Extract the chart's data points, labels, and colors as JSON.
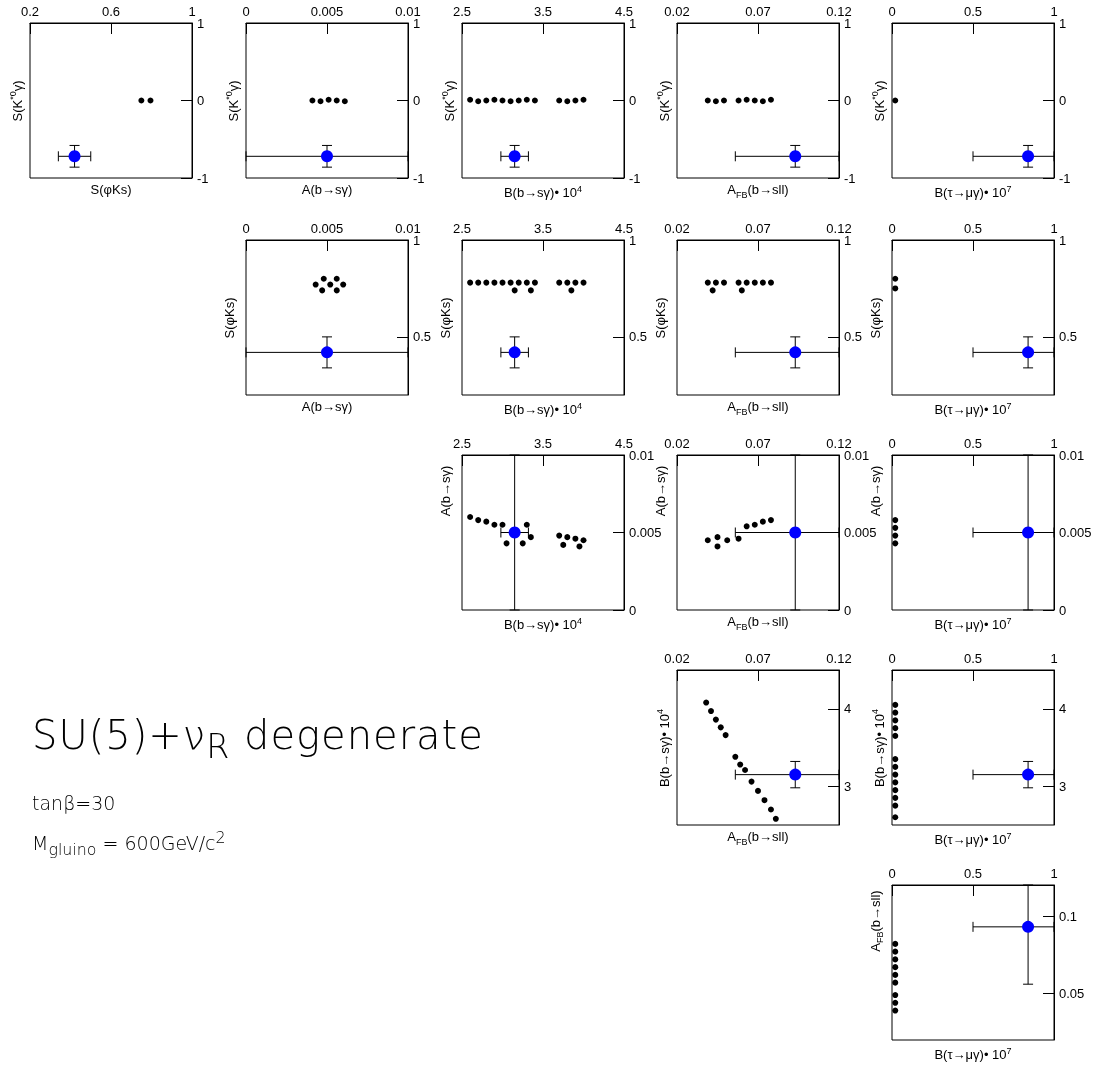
{
  "chart_data": [
    {
      "type": "scatter",
      "xlabel": "S(φKs)",
      "ylabel": "S(K$^{*0}$γ)",
      "xlim": [
        0.2,
        1
      ],
      "ylim": [
        -1,
        1
      ],
      "xticks": [
        0.2,
        0.6,
        1
      ],
      "yticks": [
        -1,
        0,
        1
      ],
      "marker": "circle",
      "series": [
        {
          "color": "#000000",
          "x": [
            0.75,
            0.795
          ],
          "values": [
            0,
            0
          ]
        },
        {
          "color": "#0000ff",
          "x": [
            0.42
          ],
          "values": [
            -0.72
          ],
          "xerrors": [
            0.08
          ],
          "errors": [
            0.14
          ]
        }
      ]
    },
    {
      "type": "scatter",
      "xlabel": "A(b→sγ)",
      "ylabel": "S(K$^{*0}$γ)",
      "xlim": [
        0,
        0.01
      ],
      "ylim": [
        -1,
        1
      ],
      "xticks": [
        0,
        0.005,
        0.01
      ],
      "yticks": [
        -1,
        0,
        1
      ],
      "marker": "circle",
      "series": [
        {
          "color": "#000000",
          "x": [
            0.0041,
            0.0046,
            0.0051,
            0.0056,
            0.0061
          ],
          "values": [
            0,
            -0.01,
            0.01,
            0,
            -0.01
          ]
        },
        {
          "color": "#0000ff",
          "x": [
            0.005
          ],
          "values": [
            -0.72
          ],
          "xerrors": [
            0.005
          ],
          "errors": [
            0.14
          ]
        }
      ]
    },
    {
      "type": "scatter",
      "xlabel": "B(b→sγ)• 10$^{4}$",
      "ylabel": "S(K$^{*0}$γ)",
      "xlim": [
        2.5,
        4.5
      ],
      "ylim": [
        -1,
        1
      ],
      "xticks": [
        2.5,
        3.5,
        4.5
      ],
      "yticks": [
        -1,
        0,
        1
      ],
      "marker": "circle",
      "series": [
        {
          "color": "#000000",
          "x": [
            2.6,
            2.7,
            2.8,
            2.9,
            3,
            3.1,
            3.2,
            3.3,
            3.4,
            3.7,
            3.8,
            3.9,
            4
          ],
          "values": [
            0.01,
            -0.01,
            0,
            0.01,
            0,
            -0.01,
            0,
            0.01,
            0,
            0,
            -0.01,
            0,
            0.01
          ]
        },
        {
          "color": "#0000ff",
          "x": [
            3.15
          ],
          "values": [
            -0.72
          ],
          "xerrors": [
            0.17
          ],
          "errors": [
            0.14
          ]
        }
      ]
    },
    {
      "type": "scatter",
      "xlabel": "A$_{FB}$(b→sll)",
      "ylabel": "S(K$^{*0}$γ)",
      "xlim": [
        0.02,
        0.12
      ],
      "ylim": [
        -1,
        1
      ],
      "xticks": [
        0.02,
        0.07,
        0.12
      ],
      "yticks": [
        -1,
        0,
        1
      ],
      "marker": "circle",
      "series": [
        {
          "color": "#000000",
          "x": [
            0.039,
            0.044,
            0.049,
            0.058,
            0.063,
            0.068,
            0.073,
            0.078
          ],
          "values": [
            0,
            -0.01,
            0,
            0,
            0.01,
            0,
            -0.01,
            0.01
          ]
        },
        {
          "color": "#0000ff",
          "x": [
            0.093
          ],
          "values": [
            -0.72
          ],
          "xerrors": [
            [
              0.056,
              0.12
            ]
          ],
          "errors": [
            0.14
          ]
        }
      ]
    },
    {
      "type": "scatter",
      "xlabel": "B(τ→μγ)• 10$^{7}$",
      "ylabel": "S(K$^{*0}$γ)",
      "xlim": [
        0,
        1
      ],
      "ylim": [
        -1,
        1
      ],
      "xticks": [
        0,
        0.5,
        1
      ],
      "yticks": [
        -1,
        0,
        1
      ],
      "marker": "circle",
      "series": [
        {
          "color": "#000000",
          "x": [
            0.02
          ],
          "values": [
            0
          ]
        },
        {
          "color": "#0000ff",
          "x": [
            0.84
          ],
          "values": [
            -0.72
          ],
          "xerrors": [
            [
              0.5,
              1
            ]
          ],
          "errors": [
            0.14
          ]
        }
      ]
    },
    {
      "type": "scatter",
      "xlabel": "A(b→sγ)",
      "ylabel": "S(φKs)",
      "xlim": [
        0,
        0.01
      ],
      "ylim": [
        0.2,
        1
      ],
      "xticks": [
        0,
        0.005,
        0.01
      ],
      "yticks": [
        0.5,
        1
      ],
      "marker": "circle",
      "series": [
        {
          "color": "#000000",
          "x": [
            0.0043,
            0.0048,
            0.0047,
            0.0052,
            0.0056,
            0.0056,
            0.006
          ],
          "values": [
            0.77,
            0.8,
            0.74,
            0.77,
            0.8,
            0.74,
            0.77
          ]
        },
        {
          "color": "#0000ff",
          "x": [
            0.005
          ],
          "values": [
            0.42
          ],
          "xerrors": [
            0.005
          ],
          "errors": [
            0.08
          ]
        }
      ]
    },
    {
      "type": "scatter",
      "xlabel": "B(b→sγ)• 10$^{4}$",
      "ylabel": "S(φKs)",
      "xlim": [
        2.5,
        4.5
      ],
      "ylim": [
        0.2,
        1
      ],
      "xticks": [
        2.5,
        3.5,
        4.5
      ],
      "yticks": [
        0.5,
        1
      ],
      "marker": "circle",
      "series": [
        {
          "color": "#000000",
          "x": [
            2.6,
            2.7,
            2.8,
            2.9,
            3,
            3.1,
            3.2,
            3.3,
            3.4,
            3.7,
            3.8,
            3.9,
            4,
            3.15,
            3.35,
            3.85
          ],
          "values": [
            0.78,
            0.78,
            0.78,
            0.78,
            0.78,
            0.78,
            0.78,
            0.78,
            0.78,
            0.78,
            0.78,
            0.78,
            0.78,
            0.74,
            0.74,
            0.74
          ]
        },
        {
          "color": "#0000ff",
          "x": [
            3.15
          ],
          "values": [
            0.42
          ],
          "xerrors": [
            0.17
          ],
          "errors": [
            0.08
          ]
        }
      ]
    },
    {
      "type": "scatter",
      "xlabel": "A$_{FB}$(b→sll)",
      "ylabel": "S(φKs)",
      "xlim": [
        0.02,
        0.12
      ],
      "ylim": [
        0.2,
        1
      ],
      "xticks": [
        0.02,
        0.07,
        0.12
      ],
      "yticks": [
        0.5,
        1
      ],
      "marker": "circle",
      "series": [
        {
          "color": "#000000",
          "x": [
            0.039,
            0.044,
            0.049,
            0.058,
            0.063,
            0.068,
            0.073,
            0.078,
            0.042,
            0.06
          ],
          "values": [
            0.78,
            0.78,
            0.78,
            0.78,
            0.78,
            0.78,
            0.78,
            0.78,
            0.74,
            0.74
          ]
        },
        {
          "color": "#0000ff",
          "x": [
            0.093
          ],
          "values": [
            0.42
          ],
          "xerrors": [
            [
              0.056,
              0.12
            ]
          ],
          "errors": [
            0.08
          ]
        }
      ]
    },
    {
      "type": "scatter",
      "xlabel": "B(τ→μγ)• 10$^{7}$",
      "ylabel": "S(φKs)",
      "xlim": [
        0,
        1
      ],
      "ylim": [
        0.2,
        1
      ],
      "xticks": [
        0,
        0.5,
        1
      ],
      "yticks": [
        0.5,
        1
      ],
      "marker": "circle",
      "series": [
        {
          "color": "#000000",
          "x": [
            0.02,
            0.02
          ],
          "values": [
            0.75,
            0.8
          ]
        },
        {
          "color": "#0000ff",
          "x": [
            0.84
          ],
          "values": [
            0.42
          ],
          "xerrors": [
            [
              0.5,
              1
            ]
          ],
          "errors": [
            0.08
          ]
        }
      ]
    },
    {
      "type": "scatter",
      "xlabel": "B(b→sγ)• 10$^{4}$",
      "ylabel": "A(b→sγ)",
      "xlim": [
        2.5,
        4.5
      ],
      "ylim": [
        0,
        0.01
      ],
      "xticks": [
        2.5,
        3.5,
        4.5
      ],
      "yticks": [
        0,
        0.005,
        0.01
      ],
      "marker": "circle",
      "series": [
        {
          "color": "#000000",
          "x": [
            2.6,
            2.7,
            2.8,
            2.9,
            3,
            3.3,
            3.35,
            3.25,
            3.05,
            3.7,
            3.8,
            3.9,
            4,
            3.75,
            3.95
          ],
          "values": [
            0.006,
            0.0058,
            0.0057,
            0.0055,
            0.0055,
            0.0055,
            0.0047,
            0.0043,
            0.0043,
            0.0048,
            0.0047,
            0.0046,
            0.0045,
            0.0042,
            0.0041
          ]
        },
        {
          "color": "#0000ff",
          "x": [
            3.15
          ],
          "values": [
            0.005
          ],
          "xerrors": [
            0.17
          ],
          "errors": [
            0.005
          ]
        }
      ]
    },
    {
      "type": "scatter",
      "xlabel": "A$_{FB}$(b→sll)",
      "ylabel": "A(b→sγ)",
      "xlim": [
        0.02,
        0.12
      ],
      "ylim": [
        0,
        0.01
      ],
      "xticks": [
        0.02,
        0.07,
        0.12
      ],
      "yticks": [
        0,
        0.005,
        0.01
      ],
      "marker": "circle",
      "series": [
        {
          "color": "#000000",
          "x": [
            0.039,
            0.045,
            0.051,
            0.045,
            0.058,
            0.063,
            0.068,
            0.073,
            0.078
          ],
          "values": [
            0.0045,
            0.0047,
            0.0045,
            0.0041,
            0.0046,
            0.0054,
            0.0055,
            0.0057,
            0.0058
          ]
        },
        {
          "color": "#0000ff",
          "x": [
            0.093
          ],
          "values": [
            0.005
          ],
          "xerrors": [
            [
              0.056,
              0.12
            ]
          ],
          "errors": [
            0.005
          ]
        }
      ]
    },
    {
      "type": "scatter",
      "xlabel": "B(τ→μγ)• 10$^{7}$",
      "ylabel": "A(b→sγ)",
      "xlim": [
        0,
        1
      ],
      "ylim": [
        0,
        0.01
      ],
      "xticks": [
        0,
        0.5,
        1
      ],
      "yticks": [
        0,
        0.005,
        0.01
      ],
      "marker": "circle",
      "series": [
        {
          "color": "#000000",
          "x": [
            0.02,
            0.02,
            0.02,
            0.02
          ],
          "values": [
            0.0043,
            0.0048,
            0.0053,
            0.0058
          ]
        },
        {
          "color": "#0000ff",
          "x": [
            0.84
          ],
          "values": [
            0.005
          ],
          "xerrors": [
            [
              0.5,
              1
            ]
          ],
          "errors": [
            0.005
          ]
        }
      ]
    },
    {
      "type": "other",
      "title": "SU(5)+ν$_{R}$ degenerate",
      "annotations": [
        "tanβ=30",
        "M$_{gluino}$ = 600GeV/c$^{2}$"
      ]
    },
    {
      "type": "scatter",
      "xlabel": "A$_{FB}$(b→sll)",
      "ylabel": "B(b→sγ)• 10$^{4}$",
      "xlim": [
        0.02,
        0.12
      ],
      "ylim": [
        2.5,
        4.5
      ],
      "xticks": [
        0.02,
        0.07,
        0.12
      ],
      "yticks": [
        3,
        4
      ],
      "marker": "circle",
      "series": [
        {
          "color": "#000000",
          "x": [
            0.038,
            0.041,
            0.044,
            0.047,
            0.05,
            0.056,
            0.059,
            0.062,
            0.066,
            0.07,
            0.074,
            0.078,
            0.081
          ],
          "values": [
            4.08,
            3.97,
            3.86,
            3.76,
            3.66,
            3.38,
            3.28,
            3.21,
            3.06,
            2.94,
            2.82,
            2.7,
            2.58
          ]
        },
        {
          "color": "#0000ff",
          "x": [
            0.093
          ],
          "values": [
            3.15
          ],
          "xerrors": [
            [
              0.056,
              0.12
            ]
          ],
          "errors": [
            0.17
          ]
        }
      ]
    },
    {
      "type": "scatter",
      "xlabel": "B(τ→μγ)• 10$^{7}$",
      "ylabel": "B(b→sγ)• 10$^{4}$",
      "xlim": [
        0,
        1
      ],
      "ylim": [
        2.5,
        4.5
      ],
      "xticks": [
        0,
        0.5,
        1
      ],
      "yticks": [
        3,
        4
      ],
      "marker": "circle",
      "series": [
        {
          "color": "#000000",
          "x": [
            0.02,
            0.02,
            0.02,
            0.02,
            0.02,
            0.02,
            0.02,
            0.02,
            0.02,
            0.02,
            0.02,
            0.02,
            0.02
          ],
          "values": [
            4.05,
            3.95,
            3.85,
            3.75,
            3.65,
            3.35,
            3.25,
            3.15,
            3.05,
            2.95,
            2.85,
            2.75,
            2.6
          ]
        },
        {
          "color": "#0000ff",
          "x": [
            0.84
          ],
          "values": [
            3.15
          ],
          "xerrors": [
            [
              0.5,
              1
            ]
          ],
          "errors": [
            0.17
          ]
        }
      ]
    },
    {
      "type": "scatter",
      "xlabel": "B(τ→μγ)• 10$^{7}$",
      "ylabel": "A$_{FB}$(b→sll)",
      "xlim": [
        0,
        1
      ],
      "ylim": [
        0.02,
        0.12
      ],
      "xticks": [
        0,
        0.5,
        1
      ],
      "yticks": [
        0.05,
        0.1
      ],
      "marker": "circle",
      "series": [
        {
          "color": "#000000",
          "x": [
            0.02,
            0.02,
            0.02,
            0.02,
            0.02,
            0.02,
            0.02,
            0.02,
            0.02
          ],
          "values": [
            0.039,
            0.044,
            0.049,
            0.057,
            0.062,
            0.067,
            0.072,
            0.077,
            0.082
          ]
        },
        {
          "color": "#0000ff",
          "x": [
            0.84
          ],
          "values": [
            0.093
          ],
          "xerrors": [
            [
              0.5,
              1
            ]
          ],
          "errors": [
            [
              0.056,
              0.12
            ]
          ]
        }
      ]
    }
  ]
}
